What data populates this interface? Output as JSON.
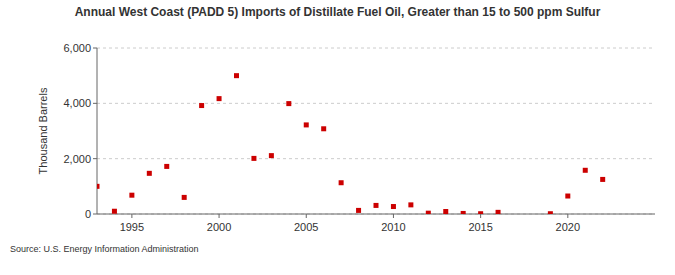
{
  "chart_data": {
    "type": "scatter",
    "title": "Annual West Coast (PADD 5) Imports of Distillate Fuel Oil, Greater than 15 to 500 ppm Sulfur",
    "y_label": "Thousand Barrels",
    "source": "Source: U.S. Energy Information Administration",
    "x": [
      1993,
      1994,
      1995,
      1996,
      1997,
      1998,
      1999,
      2000,
      2001,
      2002,
      2003,
      2004,
      2005,
      2006,
      2007,
      2008,
      2009,
      2010,
      2011,
      2012,
      2013,
      2014,
      2015,
      2016,
      2017,
      2018,
      2019,
      2020,
      2021,
      2022
    ],
    "values": [
      1000,
      100,
      680,
      1470,
      1720,
      600,
      3920,
      4170,
      5000,
      2010,
      2110,
      3990,
      3220,
      3080,
      1130,
      130,
      310,
      270,
      330,
      30,
      90,
      20,
      10,
      60,
      null,
      null,
      10,
      650,
      1580,
      1250
    ],
    "color": "#cc0000",
    "marker": "square",
    "xlim": [
      1993,
      2025
    ],
    "xticks": [
      1995,
      2000,
      2005,
      2010,
      2015,
      2020
    ],
    "ylim": [
      0,
      6000
    ],
    "yticks": [
      0,
      {
        "value": 2000,
        "label": "2,000"
      },
      {
        "value": 4000,
        "label": "4,000"
      },
      {
        "value": 6000,
        "label": "6,000"
      }
    ],
    "grid": true
  }
}
